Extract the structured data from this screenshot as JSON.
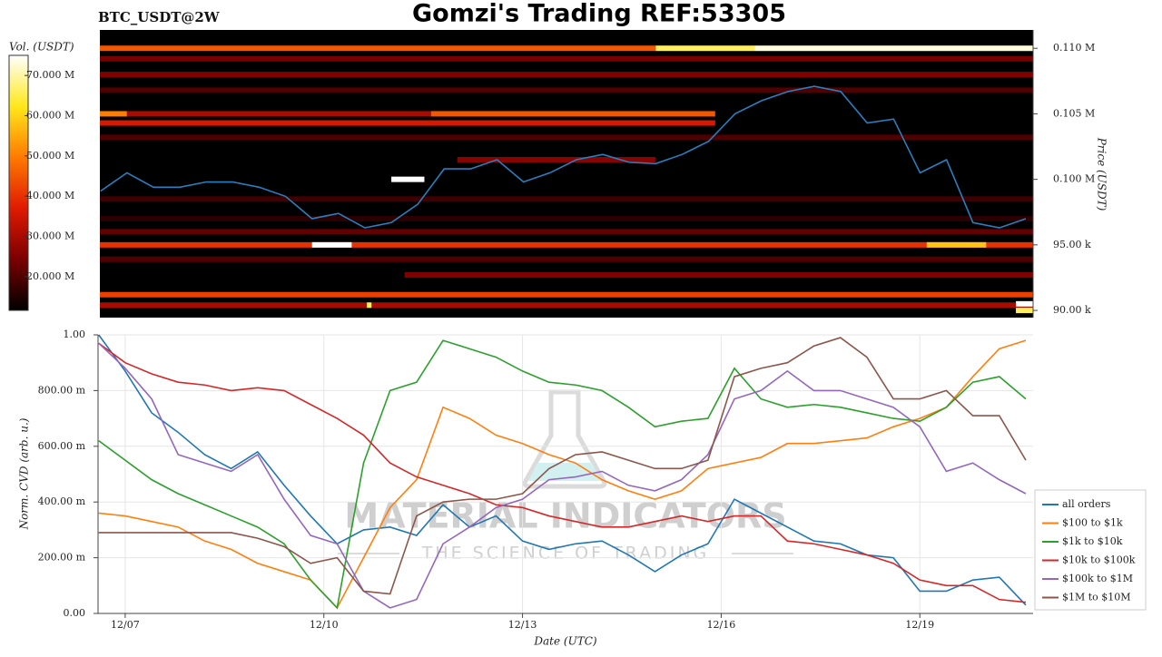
{
  "chart_data": [
    {
      "type": "heatmap",
      "title": "Gomzi's Trading REF:53305",
      "subtitle": "BTC_USDT@2W",
      "ylabel": "Price (USDT)",
      "colorbar_label": "Vol. (USDT)",
      "xlim": [
        -0.41,
        13.71
      ],
      "ylim": [
        89450,
        111400
      ],
      "yticks": [
        {
          "value": 110000,
          "label": "0.110 M"
        },
        {
          "value": 105000,
          "label": "0.105 M"
        },
        {
          "value": 100000,
          "label": "0.100 M"
        },
        {
          "value": 95000,
          "label": "95.00 k"
        },
        {
          "value": 90000,
          "label": "90.00 k"
        }
      ],
      "clim": [
        11600000,
        75000000
      ],
      "cticks": [
        {
          "value": 70000000,
          "label": "70.000 M"
        },
        {
          "value": 60000000,
          "label": "60.000 M"
        },
        {
          "value": 50000000,
          "label": "50.000 M"
        },
        {
          "value": 40000000,
          "label": "40.000 M"
        },
        {
          "value": 30000000,
          "label": "30.000 M"
        },
        {
          "value": 20000000,
          "label": "20.000 M"
        }
      ],
      "colormap": [
        "#000000",
        "#7a0000",
        "#e01a00",
        "#ff7a00",
        "#ffe81a",
        "#ffffff"
      ],
      "cells": [
        {
          "price": 110000,
          "start": -0.41,
          "end": 8.0,
          "volume": 45000000
        },
        {
          "price": 110000,
          "start": 8.0,
          "end": 9.5,
          "volume": 66000000
        },
        {
          "price": 110000,
          "start": 9.5,
          "end": 13.71,
          "volume": 73000000
        },
        {
          "price": 109200,
          "start": -0.41,
          "end": 13.71,
          "volume": 24000000
        },
        {
          "price": 108000,
          "start": -0.41,
          "end": 13.71,
          "volume": 25000000
        },
        {
          "price": 106800,
          "start": -0.41,
          "end": 13.71,
          "volume": 20000000
        },
        {
          "price": 105000,
          "start": -0.41,
          "end": 0.0,
          "volume": 50000000
        },
        {
          "price": 105000,
          "start": 0.0,
          "end": 4.6,
          "volume": 30000000
        },
        {
          "price": 105000,
          "start": 4.6,
          "end": 8.9,
          "volume": 45000000
        },
        {
          "price": 104300,
          "start": -0.41,
          "end": 8.9,
          "volume": 36000000
        },
        {
          "price": 103200,
          "start": -0.41,
          "end": 13.71,
          "volume": 20000000
        },
        {
          "price": 101500,
          "start": 5.0,
          "end": 8.0,
          "volume": 26000000
        },
        {
          "price": 100000,
          "start": 4.0,
          "end": 4.5,
          "volume": 75000000
        },
        {
          "price": 98500,
          "start": -0.41,
          "end": 13.71,
          "volume": 18000000
        },
        {
          "price": 97000,
          "start": -0.41,
          "end": 13.71,
          "volume": 16000000
        },
        {
          "price": 96000,
          "start": -0.41,
          "end": 13.71,
          "volume": 22000000
        },
        {
          "price": 95000,
          "start": -0.41,
          "end": 13.71,
          "volume": 40000000
        },
        {
          "price": 95000,
          "start": 12.1,
          "end": 13.0,
          "volume": 58000000
        },
        {
          "price": 95000,
          "start": 2.8,
          "end": 3.4,
          "volume": 75000000
        },
        {
          "price": 93900,
          "start": -0.41,
          "end": 13.71,
          "volume": 20000000
        },
        {
          "price": 92700,
          "start": 4.2,
          "end": 13.71,
          "volume": 25000000
        },
        {
          "price": 91200,
          "start": -0.41,
          "end": 13.71,
          "volume": 42000000
        },
        {
          "price": 90400,
          "start": -0.41,
          "end": 13.71,
          "volume": 30000000
        },
        {
          "price": 90400,
          "start": 3.63,
          "end": 3.7,
          "volume": 66000000
        },
        {
          "price": 90500,
          "start": 13.45,
          "end": 13.71,
          "volume": 75000000
        },
        {
          "price": 90000,
          "start": 13.45,
          "end": 13.71,
          "volume": 66000000
        }
      ],
      "x": [
        -0.4,
        0.0,
        0.4,
        0.8,
        1.2,
        1.6,
        2.0,
        2.4,
        2.8,
        3.2,
        3.6,
        4.0,
        4.4,
        4.8,
        5.2,
        5.6,
        6.0,
        6.4,
        6.8,
        7.2,
        7.6,
        8.0,
        8.4,
        8.8,
        9.2,
        9.6,
        10.0,
        10.4,
        10.8,
        11.2,
        11.6,
        12.0,
        12.4,
        12.8,
        13.2,
        13.6
      ],
      "price": {
        "color": "#2a7fc0",
        "values": [
          99100,
          100500,
          99400,
          99400,
          99800,
          99800,
          99400,
          98700,
          97000,
          97400,
          96300,
          96700,
          98100,
          100800,
          100800,
          101500,
          99800,
          100500,
          101500,
          101900,
          101300,
          101200,
          101900,
          102900,
          105000,
          106000,
          106700,
          107100,
          106700,
          104300,
          104600,
          100500,
          101500,
          96700,
          96300,
          97000
        ]
      }
    },
    {
      "type": "line",
      "ylabel": "Norm. CVD (arb. u.)",
      "xlabel": "Date (UTC)",
      "grid": true,
      "xlim": [
        -0.41,
        13.71
      ],
      "xticks": [
        {
          "value": 0,
          "label": "12/07"
        },
        {
          "value": 3,
          "label": "12/10"
        },
        {
          "value": 6,
          "label": "12/13"
        },
        {
          "value": 9,
          "label": "12/16"
        },
        {
          "value": 12,
          "label": "12/19"
        }
      ],
      "ylim": [
        0,
        1
      ],
      "yticks": [
        {
          "value": 0,
          "label": "0.00"
        },
        {
          "value": 0.2,
          "label": "200.00 m"
        },
        {
          "value": 0.4,
          "label": "400.00 m"
        },
        {
          "value": 0.6,
          "label": "600.00 m"
        },
        {
          "value": 0.8,
          "label": "800.00 m"
        },
        {
          "value": 1,
          "label": "1.00"
        }
      ],
      "annotations": [
        "MATERIAL INDICATORS",
        "THE SCIENCE OF TRADING"
      ],
      "x": [
        -0.4,
        0.0,
        0.4,
        0.8,
        1.2,
        1.6,
        2.0,
        2.4,
        2.8,
        3.2,
        3.6,
        4.0,
        4.4,
        4.8,
        5.2,
        5.6,
        6.0,
        6.4,
        6.8,
        7.2,
        7.6,
        8.0,
        8.4,
        8.8,
        9.2,
        9.6,
        10.0,
        10.4,
        10.8,
        11.2,
        11.6,
        12.0,
        12.4,
        12.8,
        13.2,
        13.6
      ],
      "series": [
        {
          "name": "all orders",
          "color": "#1f77b4",
          "values": [
            1.0,
            0.87,
            0.72,
            0.65,
            0.57,
            0.52,
            0.58,
            0.46,
            0.35,
            0.25,
            0.3,
            0.31,
            0.28,
            0.39,
            0.31,
            0.35,
            0.26,
            0.23,
            0.25,
            0.26,
            0.21,
            0.15,
            0.21,
            0.25,
            0.41,
            0.36,
            0.31,
            0.26,
            0.25,
            0.21,
            0.2,
            0.08,
            0.08,
            0.12,
            0.13,
            0.03
          ]
        },
        {
          "name": "$100 to $1k",
          "color": "#ff7f0e",
          "values": [
            0.36,
            0.35,
            0.33,
            0.31,
            0.26,
            0.23,
            0.18,
            0.15,
            0.12,
            0.02,
            0.2,
            0.38,
            0.48,
            0.74,
            0.7,
            0.64,
            0.61,
            0.57,
            0.54,
            0.48,
            0.44,
            0.41,
            0.44,
            0.52,
            0.54,
            0.56,
            0.61,
            0.61,
            0.62,
            0.63,
            0.67,
            0.7,
            0.74,
            0.85,
            0.95,
            0.98
          ]
        },
        {
          "name": "$1k to $10k",
          "color": "#2ca02c",
          "values": [
            0.62,
            0.55,
            0.48,
            0.43,
            0.39,
            0.35,
            0.31,
            0.25,
            0.12,
            0.02,
            0.54,
            0.8,
            0.83,
            0.98,
            0.95,
            0.92,
            0.87,
            0.83,
            0.82,
            0.8,
            0.74,
            0.67,
            0.69,
            0.7,
            0.88,
            0.77,
            0.74,
            0.75,
            0.74,
            0.72,
            0.7,
            0.69,
            0.74,
            0.83,
            0.85,
            0.77
          ]
        },
        {
          "name": "$10k to $100k",
          "color": "#d62728",
          "values": [
            0.97,
            0.9,
            0.86,
            0.83,
            0.82,
            0.8,
            0.81,
            0.8,
            0.75,
            0.7,
            0.64,
            0.54,
            0.49,
            0.46,
            0.43,
            0.39,
            0.38,
            0.35,
            0.33,
            0.31,
            0.31,
            0.33,
            0.35,
            0.33,
            0.35,
            0.35,
            0.26,
            0.25,
            0.23,
            0.21,
            0.18,
            0.12,
            0.1,
            0.1,
            0.05,
            0.04
          ]
        },
        {
          "name": "$100k to $1M",
          "color": "#9467bd",
          "values": [
            0.97,
            0.88,
            0.77,
            0.57,
            0.54,
            0.51,
            0.57,
            0.41,
            0.28,
            0.25,
            0.08,
            0.02,
            0.05,
            0.25,
            0.31,
            0.38,
            0.41,
            0.48,
            0.49,
            0.51,
            0.46,
            0.44,
            0.48,
            0.57,
            0.77,
            0.8,
            0.87,
            0.8,
            0.8,
            0.77,
            0.74,
            0.67,
            0.51,
            0.54,
            0.48,
            0.43
          ]
        },
        {
          "name": "$1M to $10M",
          "color": "#8c564b",
          "values": [
            0.29,
            0.29,
            0.29,
            0.29,
            0.29,
            0.29,
            0.27,
            0.24,
            0.18,
            0.2,
            0.08,
            0.07,
            0.35,
            0.4,
            0.41,
            0.41,
            0.43,
            0.52,
            0.57,
            0.58,
            0.55,
            0.52,
            0.52,
            0.55,
            0.85,
            0.88,
            0.9,
            0.96,
            0.99,
            0.92,
            0.77,
            0.77,
            0.8,
            0.71,
            0.71,
            0.55
          ]
        }
      ]
    }
  ]
}
